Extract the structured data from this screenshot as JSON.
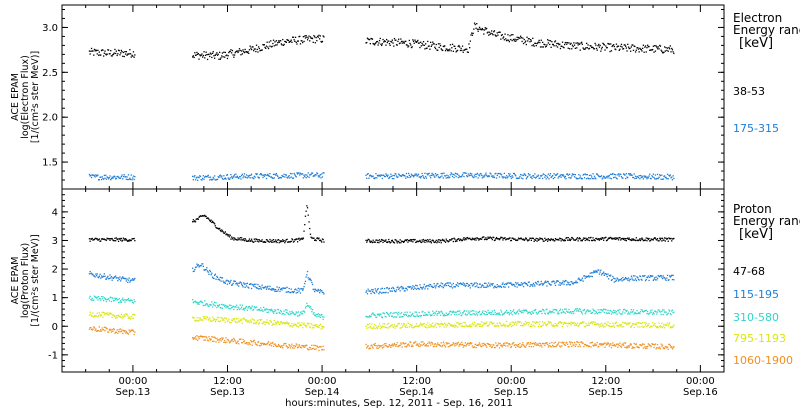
{
  "chart_data": {
    "type": "scatter",
    "x_axis": {
      "title": "hours:minutes, Sep. 12, 2011 - Sep. 16, 2011",
      "range": [
        "Sep.12 15:00",
        "Sep.16 03:00"
      ],
      "ticks": [
        {
          "time": "00:00",
          "date": "Sep.13",
          "hours": 9
        },
        {
          "time": "12:00",
          "date": "Sep.13",
          "hours": 21
        },
        {
          "time": "00:00",
          "date": "Sep.14",
          "hours": 33
        },
        {
          "time": "12:00",
          "date": "Sep.14",
          "hours": 45
        },
        {
          "time": "00:00",
          "date": "Sep.15",
          "hours": 57
        },
        {
          "time": "12:00",
          "date": "Sep.15",
          "hours": 69
        },
        {
          "time": "00:00",
          "date": "Sep.16",
          "hours": 81
        }
      ],
      "minor_tick_hours": 3
    },
    "panels": [
      {
        "id": "electron",
        "ylabel_lines": [
          "ACE EPAM",
          "log(Electron Flux)",
          "[1/(cm²s ster MeV)]"
        ],
        "ylim": [
          1.2,
          3.25
        ],
        "yticks": [
          {
            "value": 1.5,
            "label": "1.5"
          },
          {
            "value": 2.0,
            "label": "2.0"
          },
          {
            "value": 2.5,
            "label": "2.5"
          },
          {
            "value": 3.0,
            "label": "3.0"
          }
        ],
        "legend_title_lines": [
          "Electron",
          "Energy range"
        ],
        "legend_unit": "[keV]",
        "series": [
          {
            "name": "38-53",
            "color": "#000000",
            "points": [
              [
                3.4,
                2.73
              ],
              [
                6,
                2.72
              ],
              [
                9,
                2.72
              ],
              [
                16,
                2.7
              ],
              [
                20,
                2.69
              ],
              [
                24,
                2.76
              ],
              [
                28,
                2.85
              ],
              [
                32,
                2.88
              ],
              [
                40,
                2.85
              ],
              [
                44,
                2.83
              ],
              [
                48,
                2.79
              ],
              [
                51.5,
                2.77
              ],
              [
                52.2,
                3.02
              ],
              [
                55,
                2.92
              ],
              [
                60,
                2.84
              ],
              [
                65,
                2.8
              ],
              [
                70,
                2.78
              ],
              [
                74,
                2.77
              ],
              [
                77.5,
                2.76
              ]
            ]
          },
          {
            "name": "175-315",
            "color": "#1f7dd6",
            "points": [
              [
                3.4,
                1.34
              ],
              [
                9,
                1.34
              ],
              [
                16,
                1.33
              ],
              [
                24,
                1.35
              ],
              [
                32,
                1.36
              ],
              [
                40,
                1.35
              ],
              [
                50,
                1.36
              ],
              [
                60,
                1.35
              ],
              [
                70,
                1.35
              ],
              [
                77.5,
                1.34
              ]
            ]
          }
        ]
      },
      {
        "id": "proton",
        "ylabel_lines": [
          "ACE EPAM",
          "log(Proton Flux)",
          "[1/(cm²s ster MeV)]"
        ],
        "ylim": [
          -1.6,
          4.8
        ],
        "yticks": [
          {
            "value": -1,
            "label": "-1"
          },
          {
            "value": 0,
            "label": "0"
          },
          {
            "value": 1,
            "label": "1"
          },
          {
            "value": 2,
            "label": "2"
          },
          {
            "value": 3,
            "label": "3"
          },
          {
            "value": 4,
            "label": "4"
          }
        ],
        "legend_title_lines": [
          "Proton",
          "Energy range"
        ],
        "legend_unit": "[keV]",
        "series": [
          {
            "name": "47-68",
            "color": "#000000",
            "points": [
              [
                3.4,
                3.05
              ],
              [
                9,
                3.05
              ],
              [
                16,
                3.6
              ],
              [
                18,
                3.9
              ],
              [
                20,
                3.4
              ],
              [
                21.5,
                3.1
              ],
              [
                24,
                3.02
              ],
              [
                28,
                3.0
              ],
              [
                30.5,
                3.05
              ],
              [
                31,
                4.3
              ],
              [
                31.5,
                3.1
              ],
              [
                33,
                3.02
              ],
              [
                40,
                3.0
              ],
              [
                48,
                3.0
              ],
              [
                52,
                3.1
              ],
              [
                60,
                3.05
              ],
              [
                70,
                3.08
              ],
              [
                77.5,
                3.05
              ]
            ]
          },
          {
            "name": "115-195",
            "color": "#1f7dd6",
            "points": [
              [
                3.4,
                1.85
              ],
              [
                9,
                1.6
              ],
              [
                16,
                1.9
              ],
              [
                17.5,
                2.2
              ],
              [
                19,
                1.8
              ],
              [
                21,
                1.55
              ],
              [
                26,
                1.35
              ],
              [
                30.5,
                1.25
              ],
              [
                31,
                1.9
              ],
              [
                32,
                1.25
              ],
              [
                33,
                1.2
              ],
              [
                40,
                1.25
              ],
              [
                48,
                1.45
              ],
              [
                55,
                1.45
              ],
              [
                65,
                1.55
              ],
              [
                68,
                1.95
              ],
              [
                70,
                1.65
              ],
              [
                72,
                1.7
              ],
              [
                77.5,
                1.72
              ]
            ]
          },
          {
            "name": "310-580",
            "color": "#2fd6c8",
            "points": [
              [
                3.4,
                1.0
              ],
              [
                9,
                0.9
              ],
              [
                16,
                0.9
              ],
              [
                20,
                0.75
              ],
              [
                30.5,
                0.45
              ],
              [
                31,
                0.8
              ],
              [
                32,
                0.4
              ],
              [
                33,
                0.35
              ],
              [
                45,
                0.45
              ],
              [
                55,
                0.5
              ],
              [
                65,
                0.55
              ],
              [
                77.5,
                0.5
              ]
            ]
          },
          {
            "name": "795-1193",
            "color": "#d9e613",
            "points": [
              [
                3.4,
                0.45
              ],
              [
                9,
                0.35
              ],
              [
                16,
                0.3
              ],
              [
                24,
                0.2
              ],
              [
                33,
                0.0
              ],
              [
                45,
                0.05
              ],
              [
                55,
                0.1
              ],
              [
                65,
                0.1
              ],
              [
                77.5,
                0.05
              ]
            ]
          },
          {
            "name": "1060-1900",
            "color": "#f0901e",
            "points": [
              [
                3.4,
                -0.05
              ],
              [
                9,
                -0.2
              ],
              [
                16,
                -0.35
              ],
              [
                24,
                -0.55
              ],
              [
                33,
                -0.75
              ],
              [
                45,
                -0.6
              ],
              [
                55,
                -0.65
              ],
              [
                65,
                -0.6
              ],
              [
                77.5,
                -0.7
              ]
            ]
          }
        ]
      }
    ],
    "data_segments_hours": [
      [
        3.4,
        9.2
      ],
      [
        16.5,
        33.2
      ],
      [
        38.5,
        77.6
      ]
    ],
    "grid": false,
    "legend_placement": "right"
  }
}
